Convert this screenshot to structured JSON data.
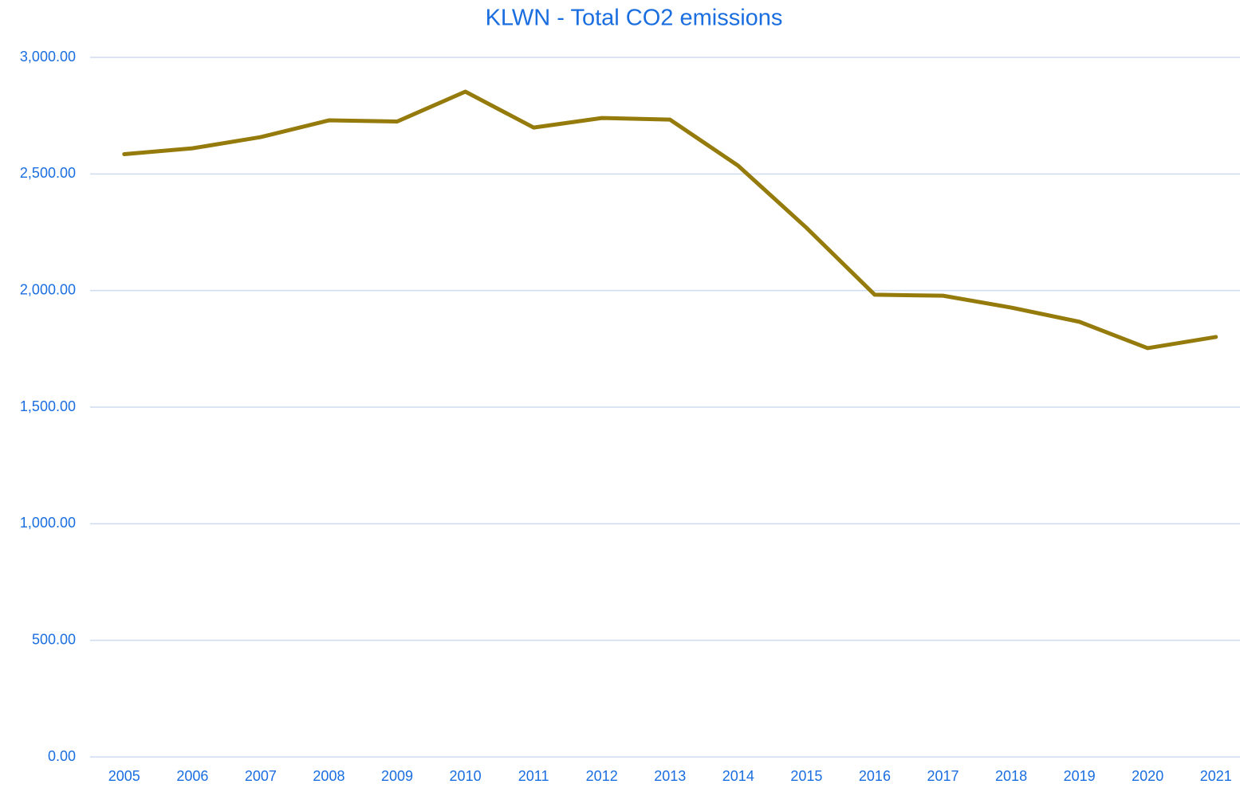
{
  "chart_data": {
    "type": "line",
    "title": "KLWN - Total CO2 emissions",
    "categories": [
      "2005",
      "2006",
      "2007",
      "2008",
      "2009",
      "2010",
      "2011",
      "2012",
      "2013",
      "2014",
      "2015",
      "2016",
      "2017",
      "2018",
      "2019",
      "2020",
      "2021"
    ],
    "series": [
      {
        "name": "Total CO2 emissions",
        "color": "#957a0c",
        "values": [
          2585,
          2610,
          2658,
          2730,
          2725,
          2853,
          2699,
          2740,
          2733,
          2535,
          2269,
          1982,
          1978,
          1927,
          1866,
          1753,
          1801
        ]
      }
    ],
    "ylim": [
      0,
      3000
    ],
    "yticks": [
      {
        "value": 0,
        "label": "0.00"
      },
      {
        "value": 500,
        "label": "500.00"
      },
      {
        "value": 1000,
        "label": "1,000.00"
      },
      {
        "value": 1500,
        "label": "1,500.00"
      },
      {
        "value": 2000,
        "label": "2,000.00"
      },
      {
        "value": 2500,
        "label": "2,500.00"
      },
      {
        "value": 3000,
        "label": "3,000.00"
      }
    ],
    "grid": true
  }
}
